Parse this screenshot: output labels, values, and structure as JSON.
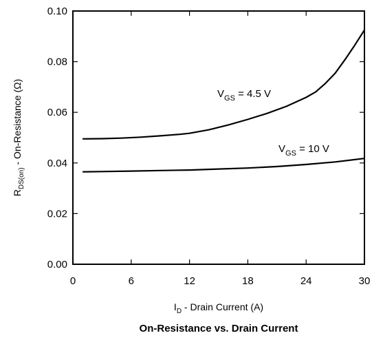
{
  "chart_data": {
    "type": "line",
    "title": "On-Resistance vs. Drain Current",
    "xlabel": {
      "main": "I",
      "sub": "D",
      "rest": " - Drain Current (A)"
    },
    "ylabel": {
      "main": "R",
      "sub": "DS(on)",
      "rest": " - On-Resistance (Ω)"
    },
    "xlim": [
      0,
      30
    ],
    "ylim": [
      0,
      0.1
    ],
    "x_ticks": [
      "0",
      "6",
      "12",
      "18",
      "24",
      "30"
    ],
    "y_ticks": [
      "0.00",
      "0.02",
      "0.04",
      "0.06",
      "0.08",
      "0.10"
    ],
    "grid": false,
    "series": [
      {
        "label": {
          "main": "V",
          "sub": "GS",
          "rest": " = 4.5 V"
        },
        "x": [
          1,
          3,
          5,
          7,
          9,
          11,
          12,
          14,
          16,
          18,
          20,
          22,
          24,
          25,
          26,
          27,
          28,
          29,
          30
        ],
        "y": [
          0.0495,
          0.0496,
          0.0498,
          0.0502,
          0.0507,
          0.0513,
          0.0517,
          0.0531,
          0.055,
          0.0572,
          0.0596,
          0.0624,
          0.0659,
          0.0681,
          0.0715,
          0.0755,
          0.0808,
          0.0865,
          0.0925
        ]
      },
      {
        "label": {
          "main": "V",
          "sub": "GS",
          "rest": " = 10 V"
        },
        "x": [
          1,
          3,
          6,
          9,
          12,
          15,
          18,
          21,
          24,
          27,
          30
        ],
        "y": [
          0.0365,
          0.0366,
          0.0368,
          0.037,
          0.0372,
          0.0376,
          0.038,
          0.0386,
          0.0394,
          0.0404,
          0.0418
        ]
      }
    ]
  }
}
